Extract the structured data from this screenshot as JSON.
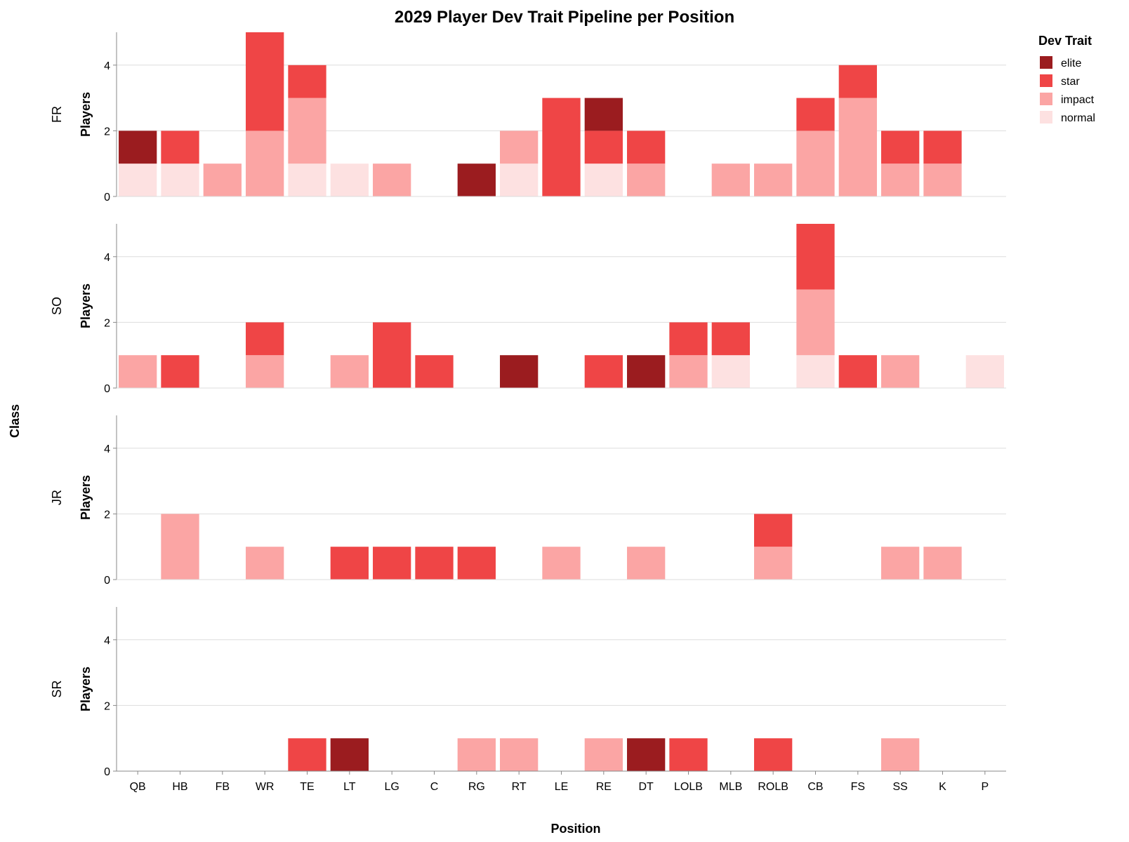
{
  "chart_data": {
    "type": "bar",
    "title": "2029 Player Dev Trait Pipeline per Position",
    "xlabel": "Position",
    "ylabel": "Players",
    "row_title": "Class",
    "legend_title": "Dev Trait",
    "legend_position": "top-right",
    "grid": true,
    "stacked": true,
    "ylim": [
      0,
      5
    ],
    "yticks": [
      0,
      2,
      4
    ],
    "categories": [
      "QB",
      "HB",
      "FB",
      "WR",
      "TE",
      "LT",
      "LG",
      "C",
      "RG",
      "RT",
      "LE",
      "RE",
      "DT",
      "LOLB",
      "MLB",
      "ROLB",
      "CB",
      "FS",
      "SS",
      "K",
      "P"
    ],
    "stack_order": [
      "normal",
      "impact",
      "star",
      "elite"
    ],
    "series": [
      {
        "name": "elite",
        "color": "#9b1c1f"
      },
      {
        "name": "star",
        "color": "#ef4546"
      },
      {
        "name": "impact",
        "color": "#fba5a4"
      },
      {
        "name": "normal",
        "color": "#fde1e1"
      }
    ],
    "panels": [
      {
        "row": "FR",
        "values": {
          "normal": [
            1,
            1,
            0,
            0,
            1,
            1,
            0,
            0,
            0,
            1,
            0,
            1,
            0,
            0,
            0,
            0,
            0,
            0,
            0,
            0,
            0
          ],
          "impact": [
            0,
            0,
            1,
            2,
            2,
            0,
            1,
            0,
            0,
            1,
            0,
            0,
            1,
            0,
            1,
            1,
            2,
            3,
            1,
            1,
            0
          ],
          "star": [
            0,
            1,
            0,
            3,
            1,
            0,
            0,
            0,
            0,
            0,
            3,
            1,
            1,
            0,
            0,
            0,
            1,
            1,
            1,
            1,
            0
          ],
          "elite": [
            1,
            0,
            0,
            0,
            0,
            0,
            0,
            0,
            1,
            0,
            0,
            1,
            0,
            0,
            0,
            0,
            0,
            0,
            0,
            0,
            0
          ]
        }
      },
      {
        "row": "SO",
        "values": {
          "normal": [
            0,
            0,
            0,
            0,
            0,
            0,
            0,
            0,
            0,
            0,
            0,
            0,
            0,
            0,
            1,
            0,
            1,
            0,
            0,
            0,
            1
          ],
          "impact": [
            1,
            0,
            0,
            1,
            0,
            1,
            0,
            0,
            0,
            0,
            0,
            0,
            0,
            1,
            0,
            0,
            2,
            0,
            1,
            0,
            0
          ],
          "star": [
            0,
            1,
            0,
            1,
            0,
            0,
            2,
            1,
            0,
            0,
            0,
            1,
            0,
            1,
            1,
            0,
            2,
            1,
            0,
            0,
            0
          ],
          "elite": [
            0,
            0,
            0,
            0,
            0,
            0,
            0,
            0,
            0,
            1,
            0,
            0,
            1,
            0,
            0,
            0,
            0,
            0,
            0,
            0,
            0
          ]
        }
      },
      {
        "row": "JR",
        "values": {
          "normal": [
            0,
            0,
            0,
            0,
            0,
            0,
            0,
            0,
            0,
            0,
            0,
            0,
            0,
            0,
            0,
            0,
            0,
            0,
            0,
            0,
            0
          ],
          "impact": [
            0,
            2,
            0,
            1,
            0,
            0,
            0,
            0,
            0,
            0,
            1,
            0,
            1,
            0,
            0,
            1,
            0,
            0,
            1,
            1,
            0
          ],
          "star": [
            0,
            0,
            0,
            0,
            0,
            1,
            1,
            1,
            1,
            0,
            0,
            0,
            0,
            0,
            0,
            1,
            0,
            0,
            0,
            0,
            0
          ],
          "elite": [
            0,
            0,
            0,
            0,
            0,
            0,
            0,
            0,
            0,
            0,
            0,
            0,
            0,
            0,
            0,
            0,
            0,
            0,
            0,
            0,
            0
          ]
        }
      },
      {
        "row": "SR",
        "values": {
          "normal": [
            0,
            0,
            0,
            0,
            0,
            0,
            0,
            0,
            0,
            0,
            0,
            0,
            0,
            0,
            0,
            0,
            0,
            0,
            0,
            0,
            0
          ],
          "impact": [
            0,
            0,
            0,
            0,
            0,
            0,
            0,
            0,
            1,
            1,
            0,
            1,
            0,
            0,
            0,
            0,
            0,
            0,
            1,
            0,
            0
          ],
          "star": [
            0,
            0,
            0,
            0,
            1,
            0,
            0,
            0,
            0,
            0,
            0,
            0,
            0,
            1,
            0,
            1,
            0,
            0,
            0,
            0,
            0
          ],
          "elite": [
            0,
            0,
            0,
            0,
            0,
            1,
            0,
            0,
            0,
            0,
            0,
            0,
            1,
            0,
            0,
            0,
            0,
            0,
            0,
            0,
            0
          ]
        }
      }
    ]
  }
}
